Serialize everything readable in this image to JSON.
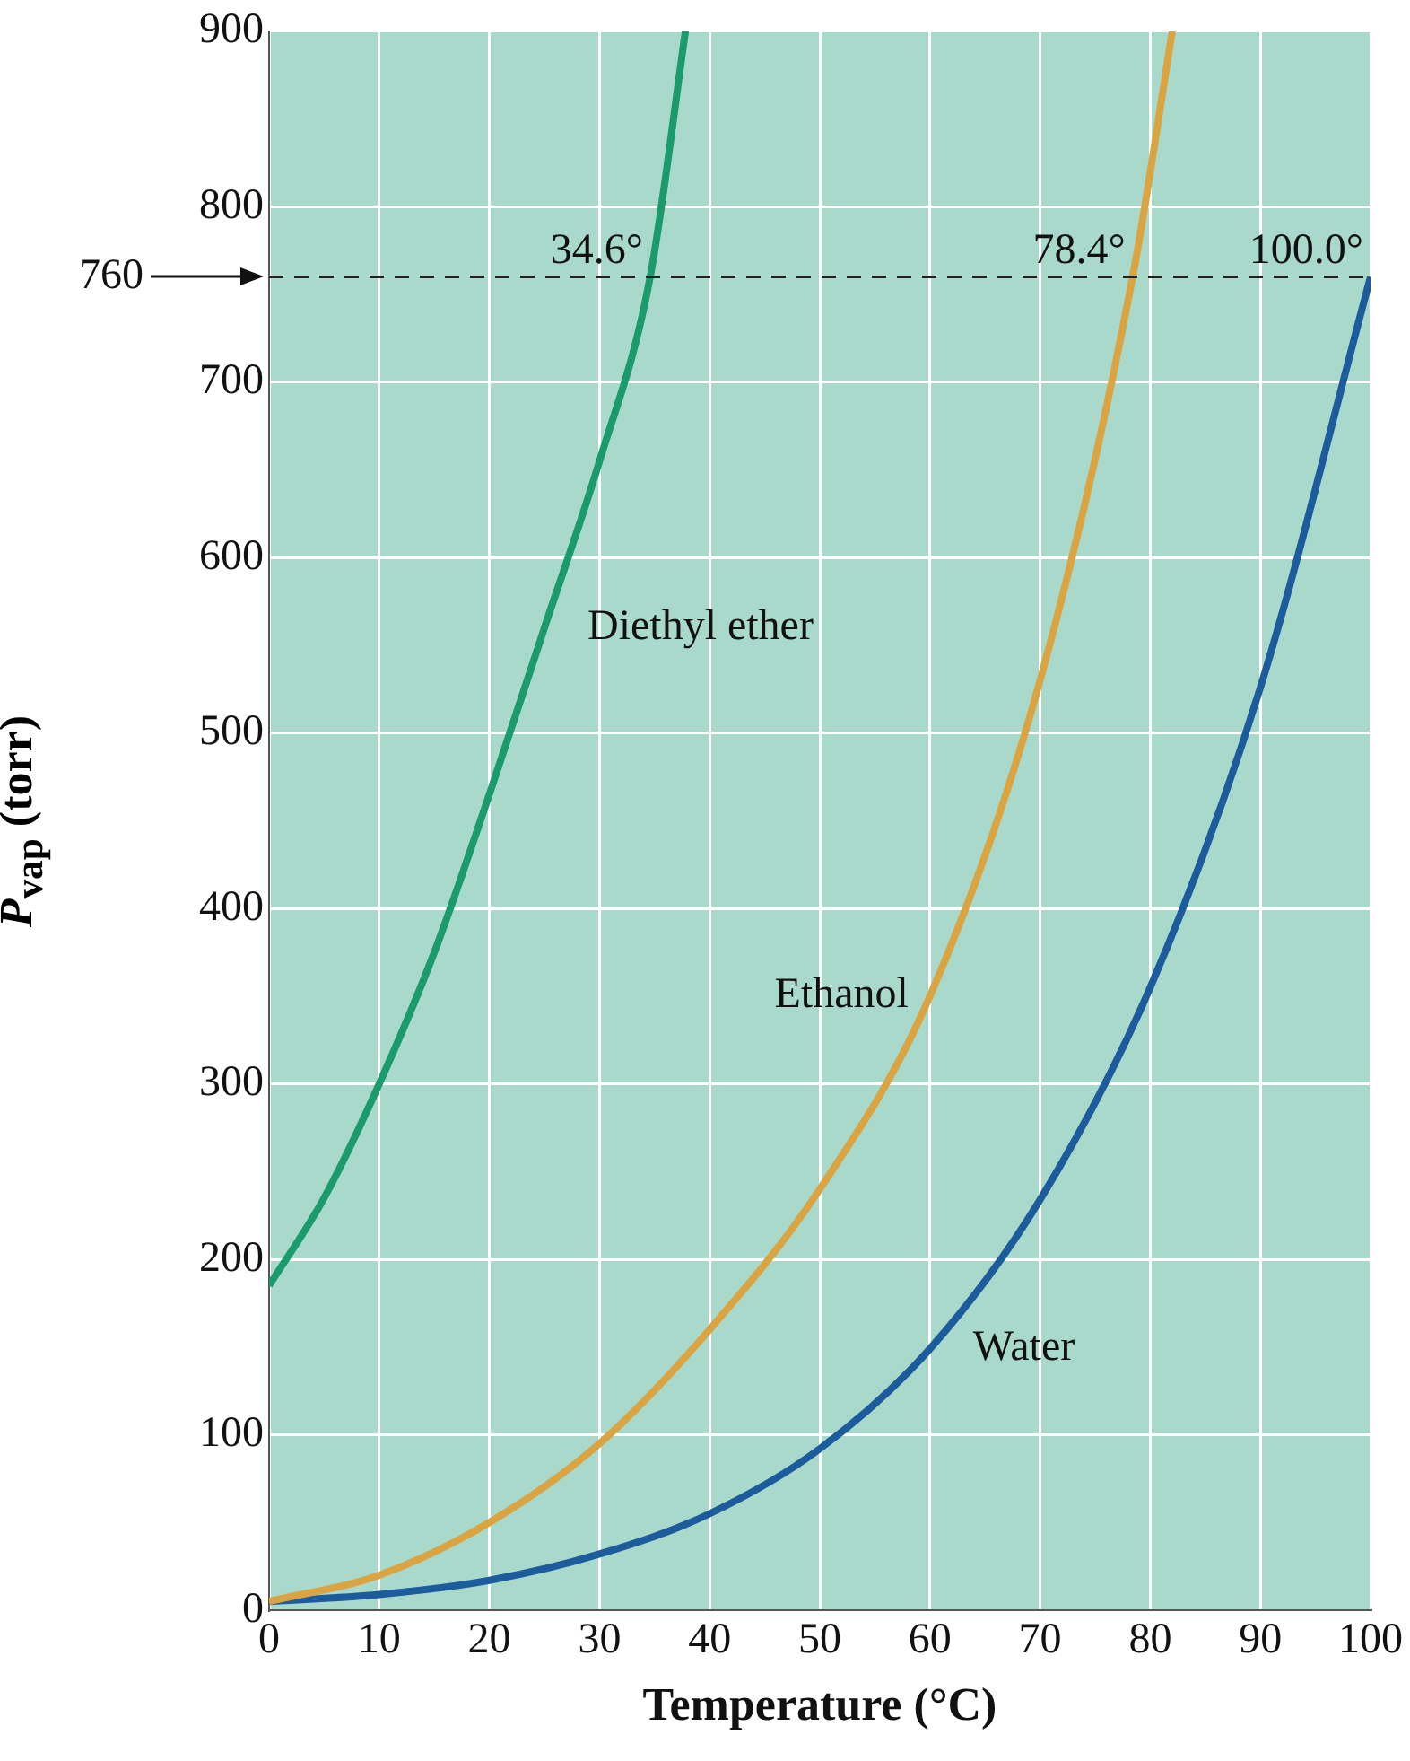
{
  "chart_data": {
    "type": "line",
    "xlabel": "Temperature (°C)",
    "ylabel": "P$_{vap}$ (torr)",
    "xlim": [
      0,
      100
    ],
    "ylim": [
      0,
      900
    ],
    "xticks": [
      0,
      10,
      20,
      30,
      40,
      50,
      60,
      70,
      80,
      90,
      100
    ],
    "yticks": [
      0,
      100,
      200,
      300,
      400,
      500,
      600,
      700,
      800,
      900
    ],
    "grid": true,
    "legend": false,
    "marker": "none",
    "line_style": "solid",
    "series": [
      {
        "name": "Diethyl ether",
        "color": "#1b9a6c",
        "x": [
          0,
          5,
          10,
          15,
          20,
          25,
          30,
          34.6,
          37.8
        ],
        "values": [
          185,
          235,
          300,
          375,
          465,
          560,
          655,
          760,
          900
        ]
      },
      {
        "name": "Ethanol",
        "color": "#d9a441",
        "x": [
          0,
          10,
          20,
          30,
          40,
          50,
          60,
          70,
          78.4,
          82
        ],
        "values": [
          5,
          20,
          50,
          95,
          160,
          240,
          350,
          530,
          760,
          900
        ]
      },
      {
        "name": "Water",
        "color": "#1c5c9c",
        "x": [
          0,
          10,
          20,
          30,
          40,
          50,
          60,
          70,
          80,
          90,
          100
        ],
        "values": [
          5,
          9,
          17,
          32,
          55,
          92,
          149,
          234,
          355,
          526,
          760
        ]
      }
    ],
    "ref_lines": [
      {
        "axis": "y",
        "value": 760,
        "label": "760",
        "line_style": "dashed",
        "color": "#222222"
      }
    ],
    "annotations": [
      {
        "text": "34.6°",
        "x": 34.6,
        "y": 760
      },
      {
        "text": "78.4°",
        "x": 78.4,
        "y": 760
      },
      {
        "text": "100.0°",
        "x": 100,
        "y": 760
      }
    ]
  }
}
